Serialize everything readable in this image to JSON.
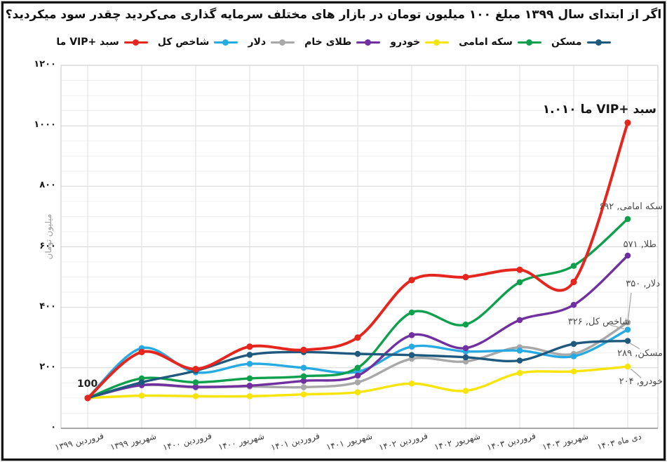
{
  "title": "اگر از ابتدای سال ۱۳۹۹ مبلغ ۱۰۰ میلیون تومان در بازار های مختلف سرمایه گذاری می‌کردید چقدر سود میکردید؟",
  "y_axis_title": "میلیون تومان",
  "legend": {
    "items": [
      {
        "key": "vip",
        "label": "سبد +VIP ما",
        "color": "#e5261f"
      },
      {
        "key": "index",
        "label": "شاخص کل",
        "color": "#27aae1"
      },
      {
        "key": "dollar",
        "label": "دلار",
        "color": "#a8a8a8"
      },
      {
        "key": "gold",
        "label": "طلای خام",
        "color": "#7030a0"
      },
      {
        "key": "car",
        "label": "خودرو",
        "color": "#f7e409"
      },
      {
        "key": "coin",
        "label": "سکه امامی",
        "color": "#0ea04c"
      },
      {
        "key": "housing",
        "label": "مسکن",
        "color": "#1f5a7e"
      }
    ]
  },
  "chart_data": {
    "type": "line",
    "title": "اگر از ابتدای سال ۱۳۹۹ مبلغ ۱۰۰ میلیون تومان در بازار های مختلف سرمایه گذاری می‌کردید چقدر سود میکردید؟",
    "ylabel": "میلیون تومان",
    "ylim": [
      0,
      1200
    ],
    "y_major_step": 200,
    "y_minor_step": 50,
    "grid": true,
    "legend_position": "top",
    "y_tick_labels": [
      "۰",
      "۲۰۰",
      "۴۰۰",
      "۶۰۰",
      "۸۰۰",
      "۱۰۰۰",
      "۱۲۰۰"
    ],
    "categories": [
      "فروردین ۱۳۹۹",
      "شهریور ۱۳۹۹",
      "فروردین ۱۴۰۰",
      "شهریور ۱۴۰۰",
      "فروردین ۱۴۰۱",
      "شهریور ۱۴۰۱",
      "فروردین ۱۴۰۲",
      "شهریور ۱۴۰۲",
      "فروردین ۱۴۰۳",
      "شهریور ۱۴۰۳",
      "دی ماه ۱۴۰۳"
    ],
    "series": [
      {
        "key": "dollar",
        "name": "دلار",
        "color": "#a8a8a8",
        "final_label": "دلار, ۳۵۰",
        "values": [
          100,
          142,
          135,
          138,
          136,
          152,
          230,
          221,
          268,
          246,
          350
        ]
      },
      {
        "key": "index",
        "name": "شاخص کل",
        "color": "#27aae1",
        "final_label": "شاخص کل, ۳۲۶",
        "values": [
          100,
          265,
          185,
          213,
          200,
          187,
          270,
          254,
          257,
          238,
          326
        ]
      },
      {
        "key": "gold",
        "name": "طلای خام",
        "color": "#7030a0",
        "final_label": "طلا, ۵۷۱",
        "values": [
          100,
          143,
          137,
          141,
          157,
          174,
          308,
          265,
          358,
          408,
          571
        ]
      },
      {
        "key": "coin",
        "name": "سکه امامی",
        "color": "#0ea04c",
        "final_label": "سکه امامی, ۶۹۲",
        "values": [
          100,
          165,
          152,
          165,
          172,
          200,
          383,
          343,
          483,
          537,
          692
        ]
      },
      {
        "key": "car",
        "name": "خودرو",
        "color": "#f7e409",
        "final_label": "خودرو, ۲۰۴",
        "values": [
          100,
          108,
          106,
          106,
          112,
          119,
          148,
          124,
          183,
          188,
          204
        ]
      },
      {
        "key": "housing",
        "name": "مسکن",
        "color": "#1f5a7e",
        "final_label": "مسکن, ۲۸۹",
        "values": [
          100,
          152,
          190,
          243,
          252,
          246,
          242,
          235,
          224,
          279,
          289
        ]
      },
      {
        "key": "vip",
        "name": "سبد +VIP ما",
        "color": "#e5261f",
        "final_label": "سبد +VIP ما  ۱.۰۱۰",
        "values": [
          100,
          252,
          196,
          270,
          259,
          300,
          490,
          500,
          524,
          484,
          1010
        ]
      }
    ],
    "start_annotation": "100",
    "annotations": [
      {
        "key": "vip",
        "text": "سبد +VIP ما  ۱.۰۱۰",
        "big": true,
        "right": 15,
        "top": 146
      },
      {
        "key": "coin",
        "text": "سکه امامی, ۶۹۲",
        "right": 6,
        "top": 287
      },
      {
        "key": "gold",
        "text": "طلا, ۵۷۱",
        "right": 15,
        "top": 341
      },
      {
        "key": "dollar",
        "text": "دلار, ۳۵۰",
        "right": 10,
        "top": 397,
        "leader": [
          900,
          417,
          895.5,
          455
        ]
      },
      {
        "key": "index",
        "text": "شاخص کل, ۳۲۶",
        "right": 53,
        "top": 451,
        "leader": [
          870,
          463,
          890,
          468.5
        ]
      },
      {
        "key": "housing",
        "text": "مسکن, ۲۸۹",
        "right": 6,
        "top": 496,
        "leader": [
          912,
          497,
          898,
          488.5
        ]
      },
      {
        "key": "car",
        "text": "خودرو, ۲۰۴",
        "right": 6,
        "top": 536,
        "leader": [
          914,
          538,
          899.5,
          525.5
        ]
      }
    ]
  }
}
